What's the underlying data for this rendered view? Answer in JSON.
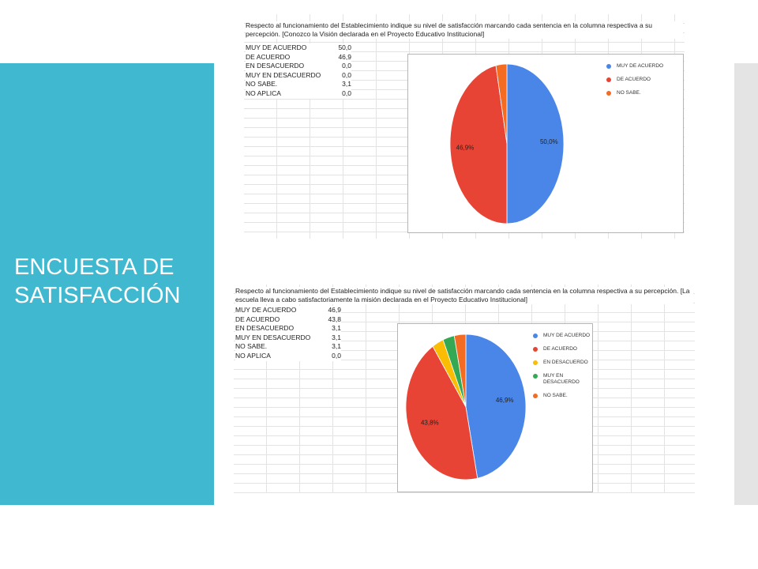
{
  "slide": {
    "title_line1": "ENCUESTA DE",
    "title_line2": "SATISFACCIÓN"
  },
  "chart_data": [
    {
      "type": "pie",
      "title": "Respecto al funcionamiento del Establecimiento indique su nivel de satisfacción marcando cada sentencia en la columna respectiva a su percepción. [Conozco la Visión declarada en el Proyecto Educativo Institucional]",
      "table": [
        {
          "label": "MUY DE ACUERDO",
          "value": "50,0"
        },
        {
          "label": "DE ACUERDO",
          "value": "46,9"
        },
        {
          "label": "EN DESACUERDO",
          "value": "0,0"
        },
        {
          "label": "MUY EN DESACUERDO",
          "value": "0,0"
        },
        {
          "label": "NO SABE.",
          "value": "3,1"
        },
        {
          "label": "NO APLICA",
          "value": "0,0"
        }
      ],
      "slices": [
        {
          "name": "MUY DE ACUERDO",
          "value": 50.0,
          "color": "#4a86e8",
          "label": "50,0%"
        },
        {
          "name": "DE ACUERDO",
          "value": 46.9,
          "color": "#e84435",
          "label": "46,9%"
        },
        {
          "name": "NO SABE.",
          "value": 3.1,
          "color": "#f46b22",
          "label": ""
        }
      ],
      "legend": [
        "MUY DE ACUERDO",
        "DE ACUERDO",
        "NO SABE."
      ]
    },
    {
      "type": "pie",
      "title": "Respecto al funcionamiento del Establecimiento indique su nivel de satisfacción marcando cada sentencia en la columna respectiva a su percepción. [La escuela lleva a cabo satisfactoriamente la misión declarada en el Proyecto Educativo Institucional]",
      "table": [
        {
          "label": "MUY DE ACUERDO",
          "value": "46,9"
        },
        {
          "label": "DE ACUERDO",
          "value": "43,8"
        },
        {
          "label": "EN DESACUERDO",
          "value": "3,1"
        },
        {
          "label": "MUY EN DESACUERDO",
          "value": "3,1"
        },
        {
          "label": "NO SABE.",
          "value": "3,1"
        },
        {
          "label": "NO APLICA",
          "value": "0,0"
        }
      ],
      "slices": [
        {
          "name": "MUY DE ACUERDO",
          "value": 46.9,
          "color": "#4a86e8",
          "label": "46,9%"
        },
        {
          "name": "DE ACUERDO",
          "value": 43.8,
          "color": "#e84435",
          "label": "43,8%"
        },
        {
          "name": "EN DESACUERDO",
          "value": 3.1,
          "color": "#fbbc04",
          "label": ""
        },
        {
          "name": "MUY EN DESACUERDO",
          "value": 3.1,
          "color": "#34a853",
          "label": ""
        },
        {
          "name": "NO SABE.",
          "value": 3.1,
          "color": "#f46b22",
          "label": ""
        }
      ],
      "legend": [
        "MUY DE ACUERDO",
        "DE ACUERDO",
        "EN DESACUERDO",
        "MUY EN DESACUERDO",
        "NO SABE."
      ]
    }
  ]
}
